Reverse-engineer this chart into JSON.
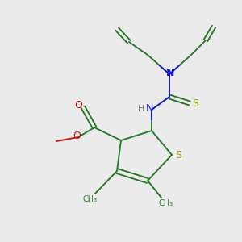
{
  "background_color": "#ebebeb",
  "atom_colors": {
    "C": "#2d7a2d",
    "N": "#1414cc",
    "O": "#cc1414",
    "S": "#aaaa00",
    "H": "#607878"
  },
  "figsize": [
    3.0,
    3.0
  ],
  "dpi": 100,
  "lw": 1.4
}
